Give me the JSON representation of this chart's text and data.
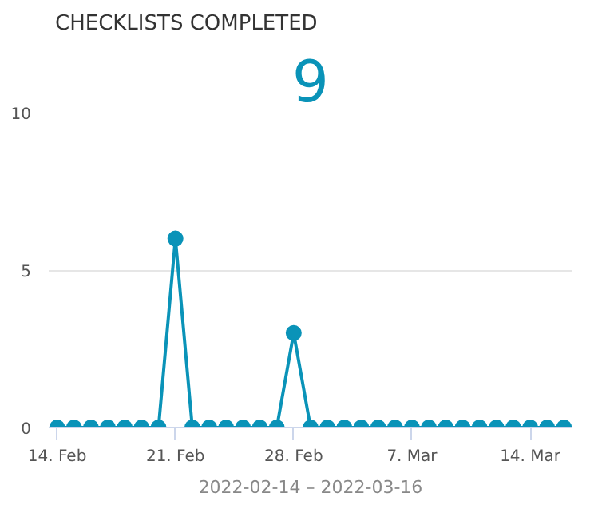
{
  "chart_data": {
    "type": "line",
    "title": "CHECKLISTS COMPLETED",
    "annotations": [
      "9"
    ],
    "xlabel": "2022-02-14 – 2022-03-16",
    "x": [
      "2022-02-14",
      "2022-02-15",
      "2022-02-16",
      "2022-02-17",
      "2022-02-18",
      "2022-02-19",
      "2022-02-20",
      "2022-02-21",
      "2022-02-22",
      "2022-02-23",
      "2022-02-24",
      "2022-02-25",
      "2022-02-26",
      "2022-02-27",
      "2022-02-28",
      "2022-03-01",
      "2022-03-02",
      "2022-03-03",
      "2022-03-04",
      "2022-03-05",
      "2022-03-06",
      "2022-03-07",
      "2022-03-08",
      "2022-03-09",
      "2022-03-10",
      "2022-03-11",
      "2022-03-12",
      "2022-03-13",
      "2022-03-14",
      "2022-03-15",
      "2022-03-16"
    ],
    "series": [
      {
        "color": "#0a93b8",
        "values": [
          0,
          0,
          0,
          0,
          0,
          0,
          0,
          6,
          0,
          0,
          0,
          0,
          0,
          0,
          3,
          0,
          0,
          0,
          0,
          0,
          0,
          0,
          0,
          0,
          0,
          0,
          0,
          0,
          0,
          0,
          0
        ]
      }
    ],
    "xlim": [
      "2022-02-13T12:00",
      "2022-03-16T12:00"
    ],
    "xticks": [
      {
        "value": "2022-02-14",
        "label": "14. Feb"
      },
      {
        "value": "2022-02-21",
        "label": "21. Feb"
      },
      {
        "value": "2022-02-28",
        "label": "28. Feb"
      },
      {
        "value": "2022-03-07",
        "label": "7. Mar"
      },
      {
        "value": "2022-03-14",
        "label": "14. Mar"
      }
    ],
    "ylim": [
      0,
      10
    ],
    "yticks": [
      0,
      5,
      10
    ],
    "grid": "y",
    "marker": "circle",
    "line_style": "solid"
  }
}
